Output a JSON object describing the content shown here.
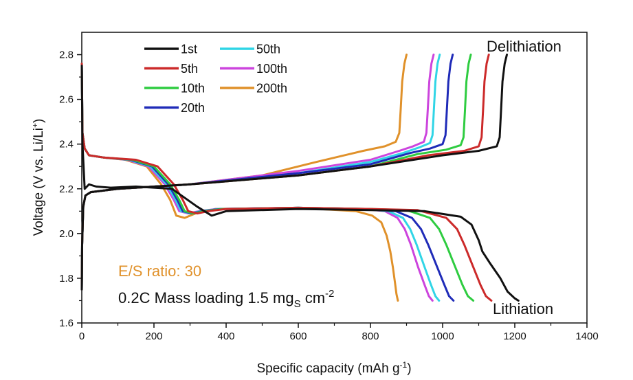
{
  "chart_data": {
    "type": "line",
    "xlabel": "Specific capacity (mAh g⁻¹)",
    "ylabel": "Voltage (V vs. Li/Li⁺)",
    "xlim": [
      0,
      1400
    ],
    "ylim": [
      1.6,
      2.9
    ],
    "xticks": [
      "0",
      "200",
      "400",
      "600",
      "800",
      "1000",
      "1200",
      "1400"
    ],
    "yticks": [
      "1.6",
      "1.8",
      "2.0",
      "2.2",
      "2.4",
      "2.6",
      "2.8"
    ],
    "legend_position": "top-left",
    "annotations": {
      "delithiation": "Delithiation",
      "lithiation": "Lithiation",
      "es_ratio": "E/S ratio: 30",
      "mass_loading_prefix": "0.2C Mass loading 1.5 mg",
      "mass_loading_sub": "S",
      "mass_loading_unit": " cm",
      "mass_loading_sup": "-2"
    },
    "series": [
      {
        "name": "1st",
        "color": "#111111",
        "discharge_x": [
          0,
          2,
          8,
          20,
          40,
          80,
          150,
          250,
          320,
          360,
          400,
          600,
          800,
          950,
          1050,
          1080,
          1100,
          1110,
          1130,
          1160,
          1180,
          1200,
          1210
        ],
        "discharge_y": [
          2.75,
          2.4,
          2.2,
          2.22,
          2.21,
          2.205,
          2.21,
          2.2,
          2.12,
          2.08,
          2.1,
          2.11,
          2.105,
          2.1,
          2.075,
          2.04,
          1.97,
          1.92,
          1.87,
          1.8,
          1.74,
          1.71,
          1.7
        ],
        "charge_x": [
          0,
          1,
          4,
          10,
          25,
          100,
          300,
          600,
          800,
          1000,
          1100,
          1150,
          1158,
          1162,
          1166,
          1172,
          1178
        ],
        "charge_y": [
          1.75,
          1.95,
          2.12,
          2.17,
          2.185,
          2.2,
          2.22,
          2.26,
          2.3,
          2.35,
          2.37,
          2.39,
          2.43,
          2.55,
          2.68,
          2.76,
          2.8
        ]
      },
      {
        "name": "5th",
        "color": "#cc2a2a",
        "discharge_x": [
          0,
          2,
          8,
          20,
          60,
          150,
          210,
          255,
          280,
          295,
          320,
          350,
          400,
          600,
          800,
          930,
          1010,
          1040,
          1060,
          1085,
          1105,
          1120,
          1135
        ],
        "discharge_y": [
          2.76,
          2.45,
          2.38,
          2.35,
          2.34,
          2.33,
          2.3,
          2.22,
          2.15,
          2.1,
          2.09,
          2.1,
          2.11,
          2.115,
          2.11,
          2.105,
          2.07,
          2.02,
          1.95,
          1.85,
          1.77,
          1.72,
          1.7
        ],
        "charge_x": [
          0,
          1,
          4,
          10,
          25,
          100,
          300,
          600,
          800,
          960,
          1060,
          1100,
          1108,
          1112,
          1116,
          1122,
          1128
        ],
        "charge_y": [
          1.75,
          1.95,
          2.12,
          2.17,
          2.185,
          2.2,
          2.22,
          2.26,
          2.3,
          2.35,
          2.37,
          2.39,
          2.43,
          2.55,
          2.68,
          2.76,
          2.8
        ]
      },
      {
        "name": "10th",
        "color": "#2ecc40",
        "discharge_x": [
          0,
          2,
          8,
          20,
          60,
          140,
          200,
          245,
          270,
          285,
          310,
          340,
          390,
          600,
          800,
          900,
          965,
          990,
          1010,
          1035,
          1055,
          1070,
          1085
        ],
        "discharge_y": [
          2.76,
          2.45,
          2.38,
          2.35,
          2.34,
          2.33,
          2.3,
          2.22,
          2.15,
          2.1,
          2.09,
          2.1,
          2.11,
          2.115,
          2.11,
          2.105,
          2.07,
          2.02,
          1.95,
          1.85,
          1.77,
          1.72,
          1.7
        ],
        "charge_x": [
          0,
          1,
          4,
          10,
          25,
          100,
          300,
          600,
          800,
          930,
          1010,
          1050,
          1058,
          1062,
          1066,
          1072,
          1078
        ],
        "charge_y": [
          1.75,
          1.95,
          2.12,
          2.17,
          2.185,
          2.2,
          2.22,
          2.26,
          2.3,
          2.355,
          2.375,
          2.395,
          2.43,
          2.55,
          2.68,
          2.76,
          2.8
        ]
      },
      {
        "name": "20th",
        "color": "#1f2bb8",
        "discharge_x": [
          0,
          2,
          8,
          20,
          60,
          135,
          195,
          240,
          265,
          280,
          305,
          335,
          385,
          600,
          800,
          870,
          915,
          940,
          960,
          985,
          1005,
          1018,
          1030
        ],
        "discharge_y": [
          2.76,
          2.45,
          2.38,
          2.35,
          2.34,
          2.33,
          2.3,
          2.22,
          2.15,
          2.1,
          2.09,
          2.1,
          2.11,
          2.115,
          2.11,
          2.1,
          2.07,
          2.02,
          1.95,
          1.85,
          1.77,
          1.72,
          1.7
        ],
        "charge_x": [
          0,
          1,
          4,
          10,
          25,
          100,
          300,
          600,
          800,
          910,
          965,
          1000,
          1008,
          1012,
          1016,
          1022,
          1028
        ],
        "charge_y": [
          1.75,
          1.95,
          2.12,
          2.17,
          2.185,
          2.2,
          2.22,
          2.27,
          2.31,
          2.36,
          2.38,
          2.4,
          2.44,
          2.56,
          2.68,
          2.76,
          2.8
        ]
      },
      {
        "name": "50th",
        "color": "#30d5e6",
        "discharge_x": [
          0,
          2,
          8,
          20,
          60,
          130,
          190,
          235,
          260,
          275,
          300,
          330,
          380,
          600,
          780,
          850,
          890,
          910,
          928,
          950,
          968,
          980,
          990
        ],
        "discharge_y": [
          2.76,
          2.45,
          2.38,
          2.35,
          2.34,
          2.33,
          2.3,
          2.22,
          2.15,
          2.1,
          2.09,
          2.1,
          2.11,
          2.115,
          2.11,
          2.1,
          2.07,
          2.02,
          1.95,
          1.85,
          1.77,
          1.72,
          1.7
        ],
        "charge_x": [
          0,
          1,
          4,
          10,
          25,
          100,
          300,
          600,
          800,
          890,
          935,
          965,
          972,
          976,
          980,
          986,
          992
        ],
        "charge_y": [
          1.75,
          1.95,
          2.12,
          2.17,
          2.185,
          2.2,
          2.22,
          2.27,
          2.32,
          2.36,
          2.385,
          2.405,
          2.44,
          2.56,
          2.68,
          2.76,
          2.8
        ]
      },
      {
        "name": "100th",
        "color": "#cc44dd",
        "discharge_x": [
          0,
          2,
          8,
          20,
          60,
          125,
          185,
          230,
          255,
          270,
          295,
          325,
          375,
          600,
          780,
          840,
          875,
          895,
          912,
          932,
          950,
          962,
          972
        ],
        "discharge_y": [
          2.76,
          2.45,
          2.38,
          2.35,
          2.34,
          2.33,
          2.3,
          2.22,
          2.15,
          2.1,
          2.09,
          2.1,
          2.11,
          2.115,
          2.11,
          2.1,
          2.07,
          2.02,
          1.95,
          1.85,
          1.77,
          1.72,
          1.7
        ],
        "charge_x": [
          0,
          1,
          4,
          10,
          25,
          100,
          300,
          600,
          800,
          880,
          918,
          948,
          955,
          959,
          963,
          969,
          975
        ],
        "charge_y": [
          1.75,
          1.95,
          2.12,
          2.17,
          2.185,
          2.2,
          2.22,
          2.28,
          2.33,
          2.37,
          2.39,
          2.41,
          2.45,
          2.56,
          2.68,
          2.76,
          2.8
        ]
      },
      {
        "name": "200th",
        "color": "#e0912a",
        "discharge_x": [
          0,
          2,
          8,
          20,
          60,
          120,
          180,
          220,
          245,
          262,
          285,
          315,
          370,
          600,
          760,
          805,
          830,
          845,
          855,
          862,
          868,
          872,
          876
        ],
        "discharge_y": [
          2.76,
          2.45,
          2.38,
          2.35,
          2.34,
          2.33,
          2.3,
          2.22,
          2.15,
          2.08,
          2.07,
          2.09,
          2.11,
          2.115,
          2.1,
          2.08,
          2.05,
          1.99,
          1.92,
          1.85,
          1.78,
          1.73,
          1.7
        ],
        "charge_x": [
          0,
          1,
          4,
          10,
          25,
          100,
          300,
          500,
          650,
          780,
          840,
          870,
          880,
          884,
          888,
          894,
          900
        ],
        "charge_y": [
          1.75,
          1.95,
          2.12,
          2.17,
          2.185,
          2.2,
          2.22,
          2.26,
          2.32,
          2.37,
          2.39,
          2.41,
          2.45,
          2.56,
          2.68,
          2.76,
          2.8
        ]
      }
    ]
  }
}
